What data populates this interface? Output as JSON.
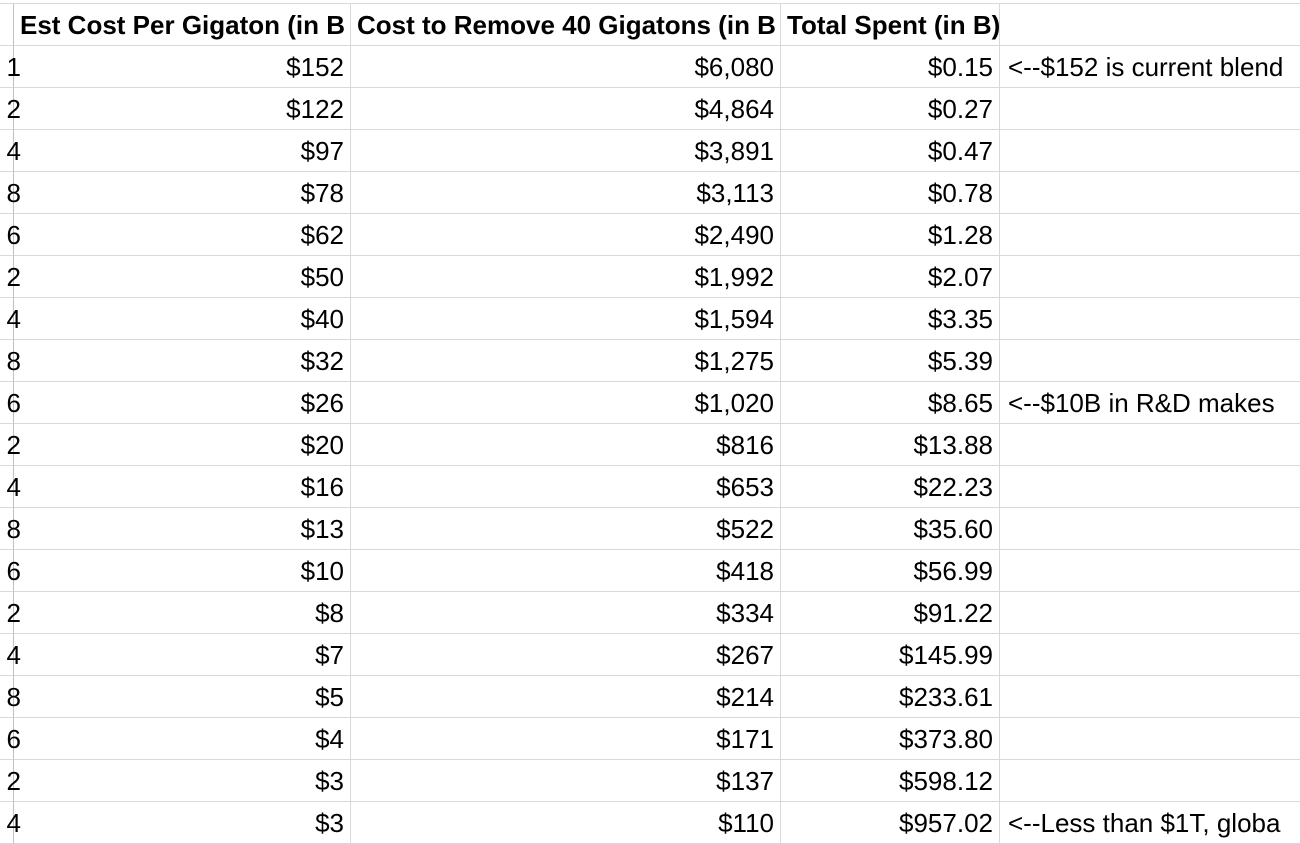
{
  "sheet": {
    "headers": {
      "row_number": "",
      "cost_per_gigaton": "Est Cost Per Gigaton (in B",
      "cost_40_gigatons": "Cost to Remove 40 Gigatons (in B",
      "total_spent": "Total Spent (in B)",
      "note": ""
    },
    "rows": [
      {
        "rownum": "1",
        "cost_per_gigaton": "$152",
        "cost_40": "$6,080",
        "total_spent": "$0.15",
        "note": "<--$152 is current blend"
      },
      {
        "rownum": "2",
        "cost_per_gigaton": "$122",
        "cost_40": "$4,864",
        "total_spent": "$0.27",
        "note": ""
      },
      {
        "rownum": "4",
        "cost_per_gigaton": "$97",
        "cost_40": "$3,891",
        "total_spent": "$0.47",
        "note": ""
      },
      {
        "rownum": "8",
        "cost_per_gigaton": "$78",
        "cost_40": "$3,113",
        "total_spent": "$0.78",
        "note": ""
      },
      {
        "rownum": "6",
        "cost_per_gigaton": "$62",
        "cost_40": "$2,490",
        "total_spent": "$1.28",
        "note": ""
      },
      {
        "rownum": "2",
        "cost_per_gigaton": "$50",
        "cost_40": "$1,992",
        "total_spent": "$2.07",
        "note": ""
      },
      {
        "rownum": "4",
        "cost_per_gigaton": "$40",
        "cost_40": "$1,594",
        "total_spent": "$3.35",
        "note": ""
      },
      {
        "rownum": "8",
        "cost_per_gigaton": "$32",
        "cost_40": "$1,275",
        "total_spent": "$5.39",
        "note": ""
      },
      {
        "rownum": "6",
        "cost_per_gigaton": "$26",
        "cost_40": "$1,020",
        "total_spent": "$8.65",
        "note": "<--$10B in R&D makes"
      },
      {
        "rownum": "2",
        "cost_per_gigaton": "$20",
        "cost_40": "$816",
        "total_spent": "$13.88",
        "note": ""
      },
      {
        "rownum": "4",
        "cost_per_gigaton": "$16",
        "cost_40": "$653",
        "total_spent": "$22.23",
        "note": ""
      },
      {
        "rownum": "8",
        "cost_per_gigaton": "$13",
        "cost_40": "$522",
        "total_spent": "$35.60",
        "note": ""
      },
      {
        "rownum": "6",
        "cost_per_gigaton": "$10",
        "cost_40": "$418",
        "total_spent": "$56.99",
        "note": ""
      },
      {
        "rownum": "2",
        "cost_per_gigaton": "$8",
        "cost_40": "$334",
        "total_spent": "$91.22",
        "note": ""
      },
      {
        "rownum": "4",
        "cost_per_gigaton": "$7",
        "cost_40": "$267",
        "total_spent": "$145.99",
        "note": ""
      },
      {
        "rownum": "8",
        "cost_per_gigaton": "$5",
        "cost_40": "$214",
        "total_spent": "$233.61",
        "note": ""
      },
      {
        "rownum": "6",
        "cost_per_gigaton": "$4",
        "cost_40": "$171",
        "total_spent": "$373.80",
        "note": ""
      },
      {
        "rownum": "2",
        "cost_per_gigaton": "$3",
        "cost_40": "$137",
        "total_spent": "$598.12",
        "note": ""
      },
      {
        "rownum": "4",
        "cost_per_gigaton": "$3",
        "cost_40": "$110",
        "total_spent": "$957.02",
        "note": "<--Less than $1T, globa"
      }
    ]
  }
}
